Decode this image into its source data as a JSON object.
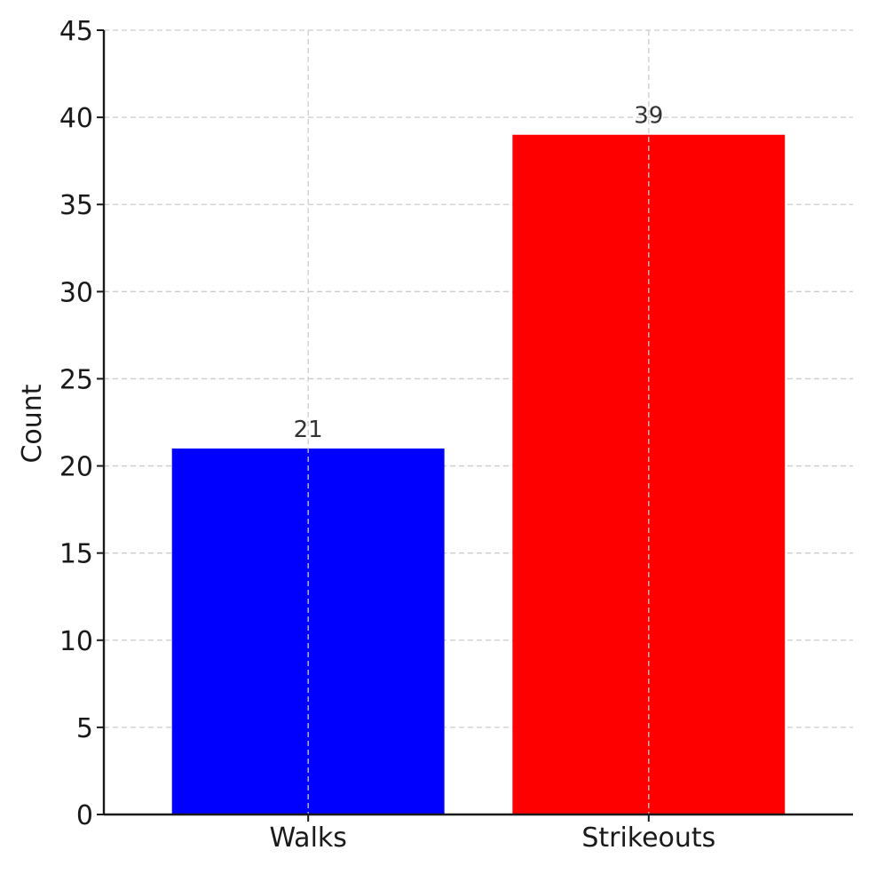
{
  "chart_data": {
    "type": "bar",
    "title": "",
    "xlabel": "",
    "ylabel": "Count",
    "categories": [
      "Walks",
      "Strikeouts"
    ],
    "values": [
      21,
      39
    ],
    "bar_colors": [
      "#0000ff",
      "#ff0000"
    ],
    "data_labels": [
      "21",
      "39"
    ],
    "ylim": [
      0,
      45
    ],
    "yticks": [
      0,
      5,
      10,
      15,
      20,
      25,
      30,
      35,
      40,
      45
    ],
    "grid": true,
    "grid_color": "#cccccc",
    "legend": false
  }
}
